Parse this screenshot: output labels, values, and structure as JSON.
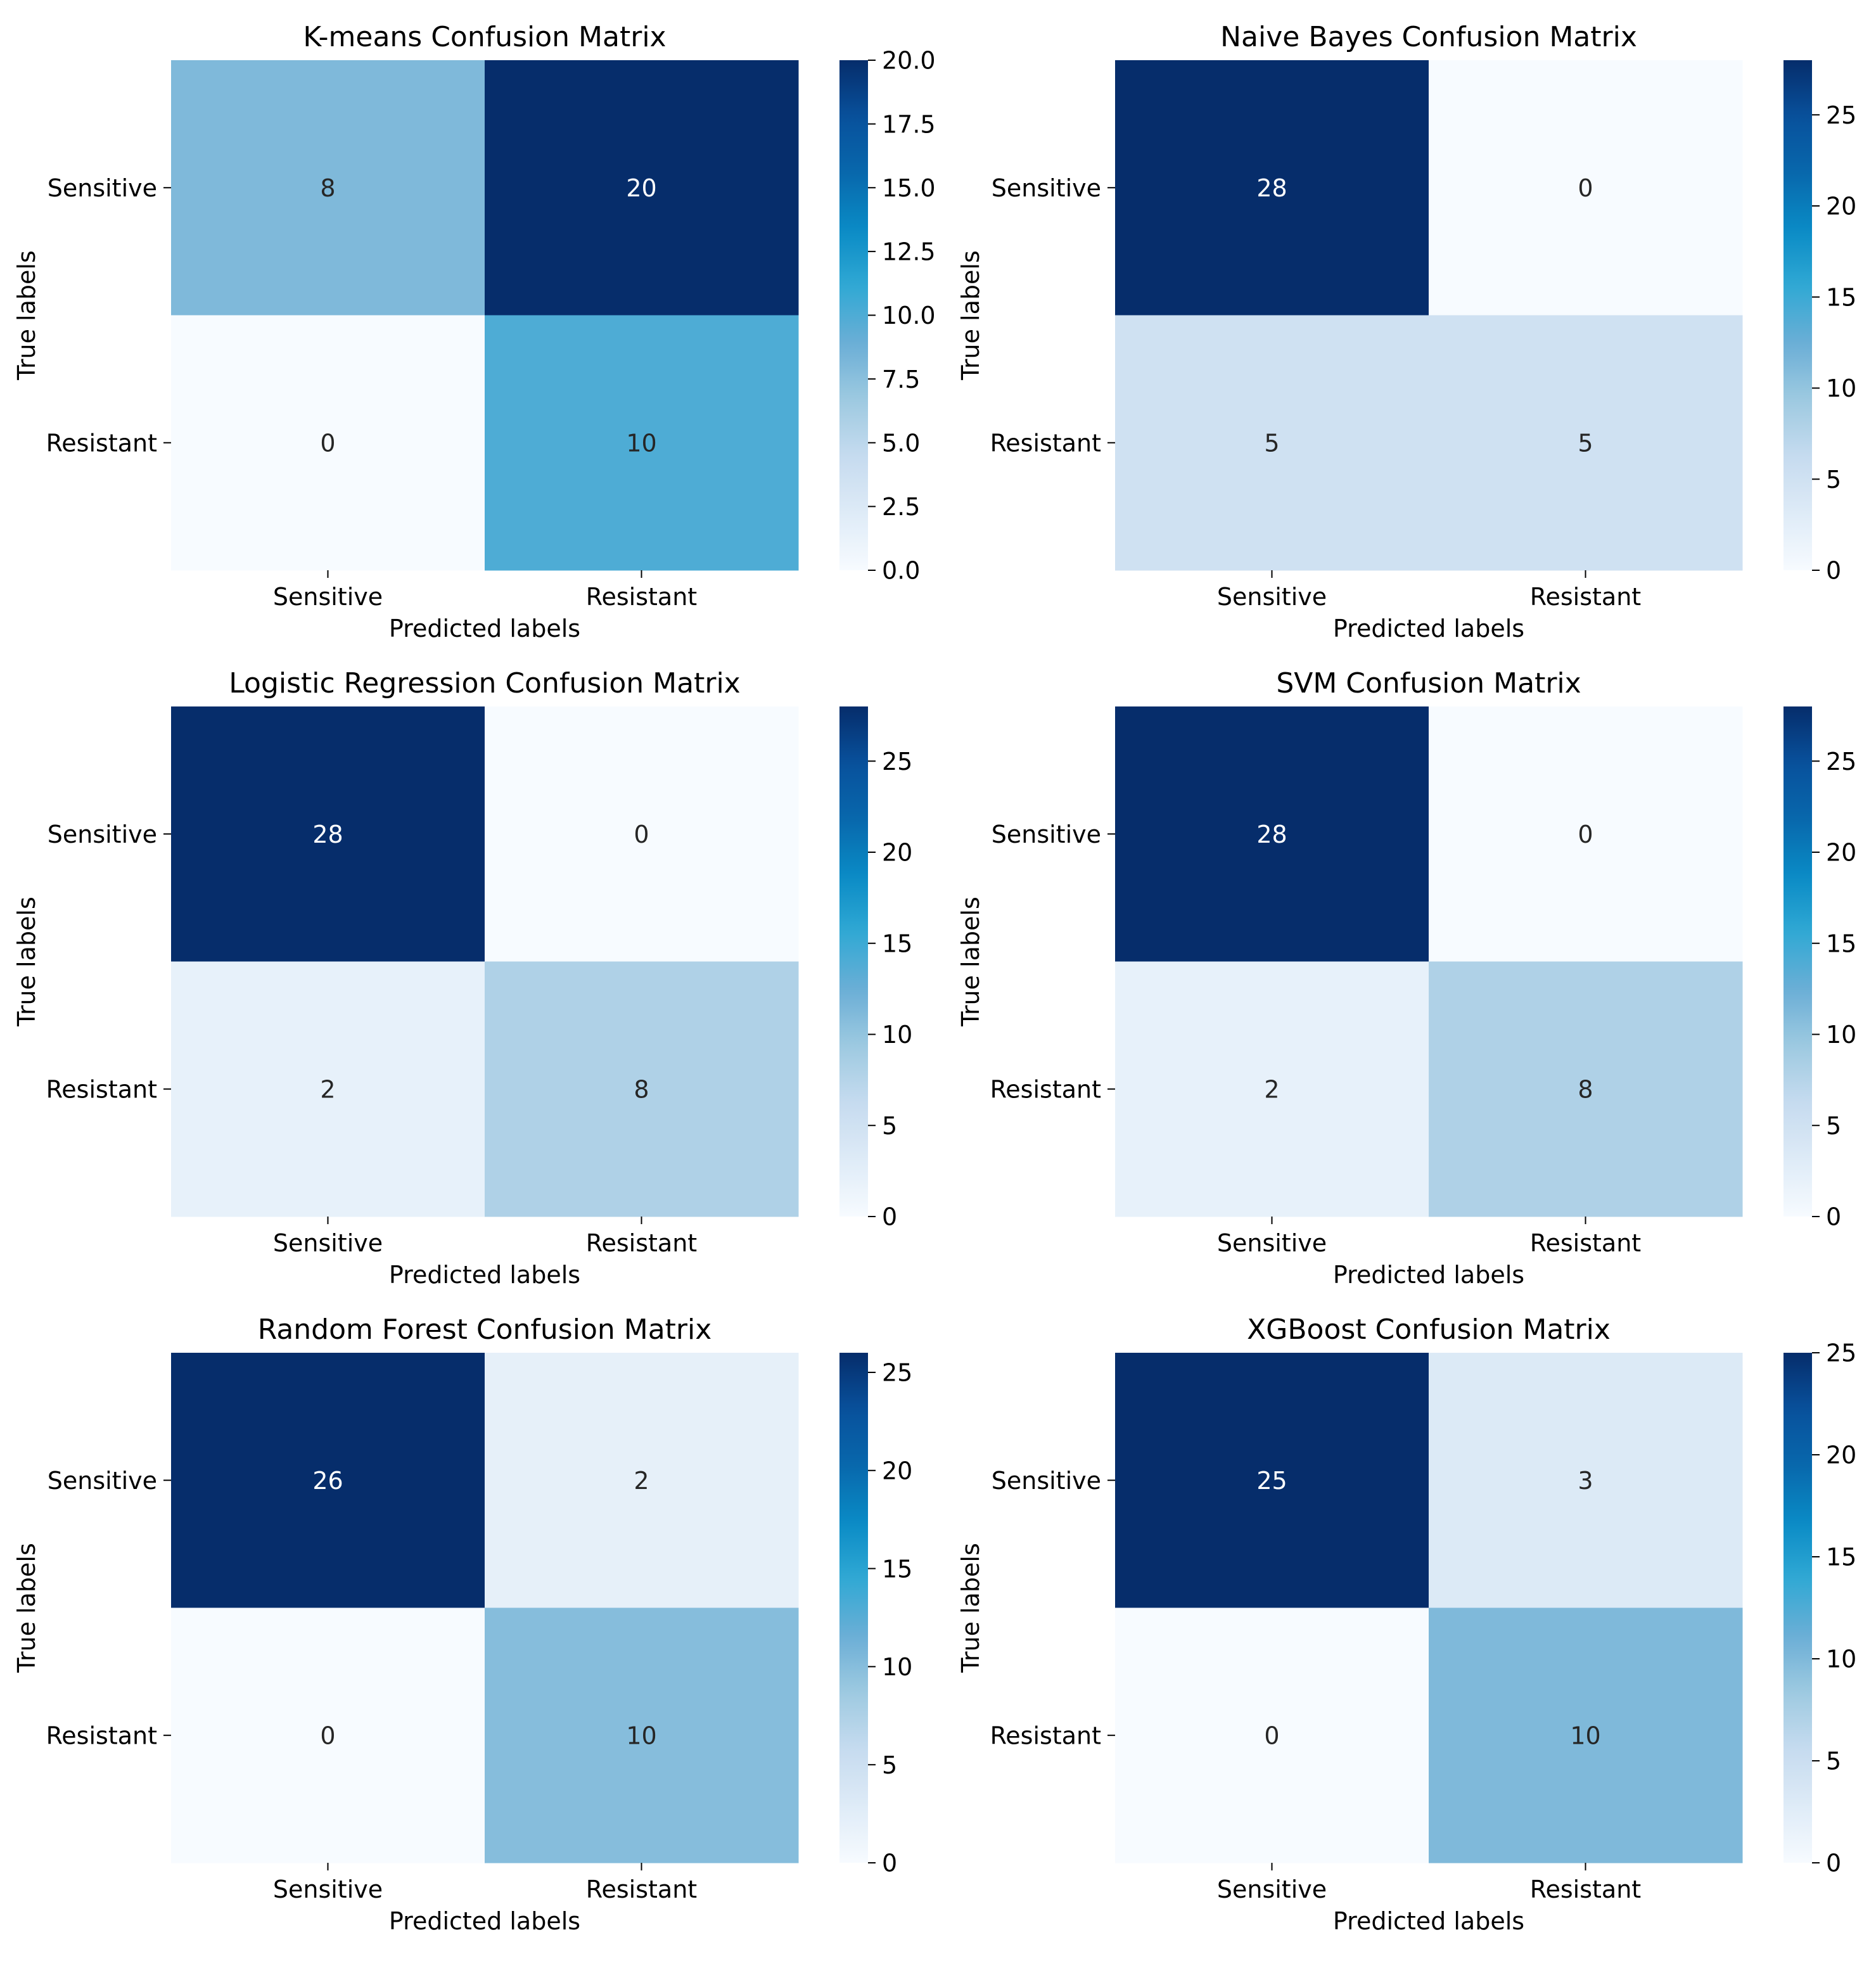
{
  "chart_data": [
    {
      "type": "heatmap",
      "title": "K-means Confusion Matrix",
      "xlabel": "Predicted labels",
      "ylabel": "True labels",
      "x_categories": [
        "Sensitive",
        "Resistant"
      ],
      "y_categories": [
        "Sensitive",
        "Resistant"
      ],
      "values": [
        [
          8,
          20
        ],
        [
          0,
          10
        ]
      ],
      "colorbar": {
        "min": 0,
        "max": 20,
        "ticks": [
          "0.0",
          "2.5",
          "5.0",
          "7.5",
          "10.0",
          "12.5",
          "15.0",
          "17.5",
          "20.0"
        ]
      }
    },
    {
      "type": "heatmap",
      "title": "Naive Bayes Confusion Matrix",
      "xlabel": "Predicted labels",
      "ylabel": "True labels",
      "x_categories": [
        "Sensitive",
        "Resistant"
      ],
      "y_categories": [
        "Sensitive",
        "Resistant"
      ],
      "values": [
        [
          28,
          0
        ],
        [
          5,
          5
        ]
      ],
      "colorbar": {
        "min": 0,
        "max": 28,
        "ticks": [
          "0",
          "5",
          "10",
          "15",
          "20",
          "25"
        ]
      }
    },
    {
      "type": "heatmap",
      "title": "Logistic Regression Confusion Matrix",
      "xlabel": "Predicted labels",
      "ylabel": "True labels",
      "x_categories": [
        "Sensitive",
        "Resistant"
      ],
      "y_categories": [
        "Sensitive",
        "Resistant"
      ],
      "values": [
        [
          28,
          0
        ],
        [
          2,
          8
        ]
      ],
      "colorbar": {
        "min": 0,
        "max": 28,
        "ticks": [
          "0",
          "5",
          "10",
          "15",
          "20",
          "25"
        ]
      }
    },
    {
      "type": "heatmap",
      "title": "SVM Confusion Matrix",
      "xlabel": "Predicted labels",
      "ylabel": "True labels",
      "x_categories": [
        "Sensitive",
        "Resistant"
      ],
      "y_categories": [
        "Sensitive",
        "Resistant"
      ],
      "values": [
        [
          28,
          0
        ],
        [
          2,
          8
        ]
      ],
      "colorbar": {
        "min": 0,
        "max": 28,
        "ticks": [
          "0",
          "5",
          "10",
          "15",
          "20",
          "25"
        ]
      }
    },
    {
      "type": "heatmap",
      "title": "Random Forest Confusion Matrix",
      "xlabel": "Predicted labels",
      "ylabel": "True labels",
      "x_categories": [
        "Sensitive",
        "Resistant"
      ],
      "y_categories": [
        "Sensitive",
        "Resistant"
      ],
      "values": [
        [
          26,
          2
        ],
        [
          0,
          10
        ]
      ],
      "colorbar": {
        "min": 0,
        "max": 26,
        "ticks": [
          "0",
          "5",
          "10",
          "15",
          "20",
          "25"
        ]
      }
    },
    {
      "type": "heatmap",
      "title": "XGBoost Confusion Matrix",
      "xlabel": "Predicted labels",
      "ylabel": "True labels",
      "x_categories": [
        "Sensitive",
        "Resistant"
      ],
      "y_categories": [
        "Sensitive",
        "Resistant"
      ],
      "values": [
        [
          25,
          3
        ],
        [
          0,
          10
        ]
      ],
      "colorbar": {
        "min": 0,
        "max": 25,
        "ticks": [
          "0",
          "5",
          "10",
          "15",
          "20",
          "25"
        ]
      }
    }
  ],
  "colors": {
    "colormap": [
      "#f7fbff",
      "#deebf7",
      "#c6dbef",
      "#9ecae1",
      "#6baed6",
      "#31a9d4",
      "#0a8bc6",
      "#0868ac",
      "#08519c",
      "#062d6b"
    ],
    "text_dark": "#262626",
    "text_light": "#ffffff",
    "axis": "#000000"
  }
}
